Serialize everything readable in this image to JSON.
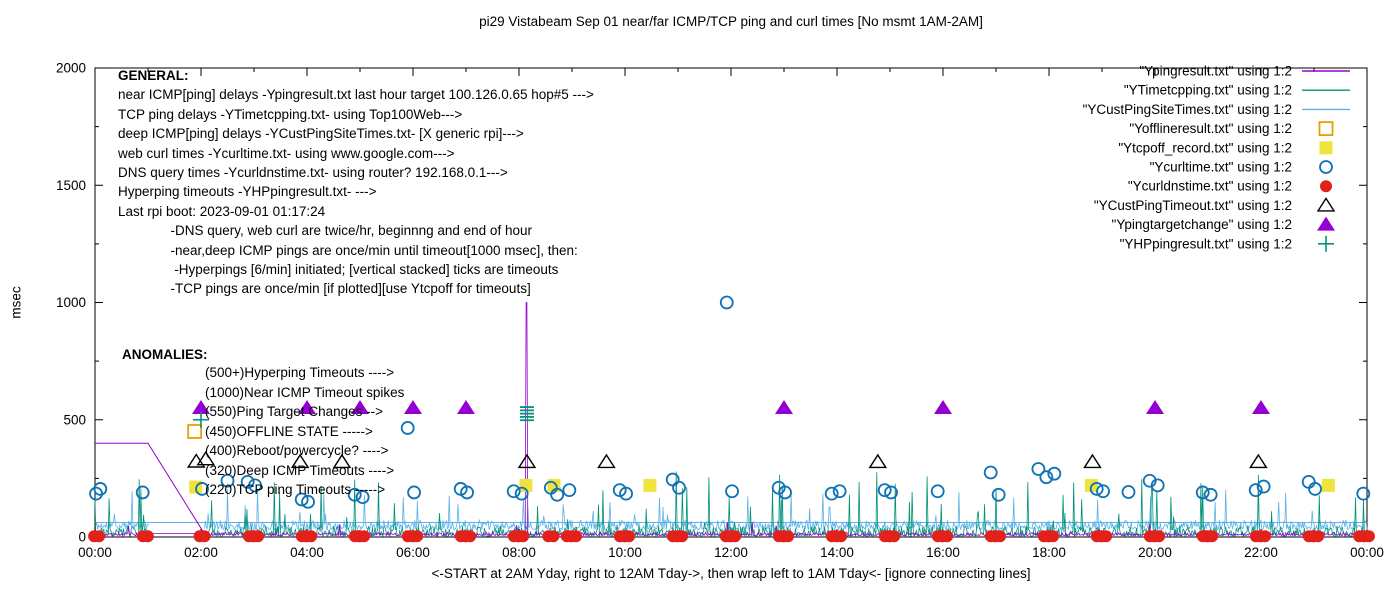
{
  "title": "pi29 Vistabeam Sep 01  near/far ICMP/TCP ping and curl times [No msmt 1AM-2AM]",
  "general_notes": [
    "GENERAL:",
    "near ICMP[ping] delays -Ypingresult.txt last hour target 100.126.0.65 hop#5 --->",
    "TCP ping delays -YTimetcpping.txt- using Top100Web--->",
    "deep ICMP[ping] delays -YCustPingSiteTimes.txt- [X generic rpi]--->",
    "web curl times -Ycurltime.txt- using www.google.com--->",
    "DNS query times -Ycurldnstime.txt- using router? 192.168.0.1--->",
    "Hyperping timeouts -YHPpingresult.txt- --->",
    "Last rpi boot: 2023-09-01 01:17:24",
    "              -DNS query, web curl are twice/hr, beginnng and end of hour",
    "              -near,deep ICMP pings are once/min until timeout[1000 msec], then:",
    "               -Hyperpings [6/min] initiated; [vertical stacked] ticks are timeouts",
    "              -TCP pings are once/min [if plotted][use Ytcpoff for timeouts]"
  ],
  "anomalies_header": "ANOMALIES:",
  "anomalies_notes": [
    "(500+)Hyperping Timeouts ---->",
    "(1000)Near ICMP Timeout spikes",
    "(550)Ping Target Changes -->",
    "(450)OFFLINE STATE ----->",
    "(400)Reboot/powercycle? ---->",
    "(320)Deep ICMP Timeouts ---->",
    "(220)TCP ping Timeouts ----->"
  ],
  "legend": [
    {
      "label": "\"Ypingresult.txt\" using 1:2",
      "sample": "line",
      "color": "near"
    },
    {
      "label": "\"YTimetcpping.txt\" using 1:2",
      "sample": "line",
      "color": "tcp"
    },
    {
      "label": "\"YCustPingSiteTimes.txt\" using 1:2",
      "sample": "line",
      "color": "deep"
    },
    {
      "label": "\"Yofflineresult.txt\" using 1:2",
      "sample": "square-open",
      "color": "offline"
    },
    {
      "label": "\"Ytcpoff_record.txt\" using 1:2",
      "sample": "square-fill",
      "color": "tcpoff"
    },
    {
      "label": "\"Ycurltime.txt\" using 1:2",
      "sample": "circle-open",
      "color": "curl"
    },
    {
      "label": "\"Ycurldnstime.txt\" using 1:2",
      "sample": "circle-fill",
      "color": "dns"
    },
    {
      "label": "\"YCustPingTimeout.txt\" using 1:2",
      "sample": "triangle-open",
      "color": "timeout"
    },
    {
      "label": "\"Ypingtargetchange\" using 1:2",
      "sample": "triangle-fill",
      "color": "target"
    },
    {
      "label": "\"YHPpingresult.txt\" using 1:2",
      "sample": "plus",
      "color": "hyper"
    }
  ],
  "colors": {
    "near": "#9400D3",
    "tcp": "#009377",
    "deep": "#5CB1E8",
    "offline": "#E8A000",
    "tcpoff": "#EFE33D",
    "curl": "#0F72B4",
    "dns": "#E3211B",
    "timeout": "#000000",
    "target": "#9400D3",
    "hyper": "#009377",
    "border": "#000000",
    "text": "#000000"
  },
  "chart_data": {
    "type": "line",
    "title": "pi29 Vistabeam Sep 01  near/far ICMP/TCP ping and curl times [No msmt 1AM-2AM]",
    "xlabel": "<-START at 2AM Yday, right to 12AM Tday->, then wrap left to 1AM Tday<- [ignore connecting lines]",
    "ylabel": "msec",
    "xlim_hours": [
      0,
      24
    ],
    "ylim": [
      0,
      2000
    ],
    "x_major_ticks": [
      {
        "h": 0,
        "label": "00:00"
      },
      {
        "h": 2,
        "label": "02:00"
      },
      {
        "h": 4,
        "label": "04:00"
      },
      {
        "h": 6,
        "label": "06:00"
      },
      {
        "h": 8,
        "label": "08:00"
      },
      {
        "h": 10,
        "label": "10:00"
      },
      {
        "h": 12,
        "label": "12:00"
      },
      {
        "h": 14,
        "label": "14:00"
      },
      {
        "h": 16,
        "label": "16:00"
      },
      {
        "h": 18,
        "label": "18:00"
      },
      {
        "h": 20,
        "label": "20:00"
      },
      {
        "h": 22,
        "label": "22:00"
      },
      {
        "h": 24,
        "label": "00:00"
      }
    ],
    "x_minor_step_hours": 1,
    "y_major_ticks": [
      0,
      500,
      1000,
      1500,
      2000
    ],
    "y_minor_ticks": [
      250,
      750,
      1250,
      1750
    ],
    "grid": false,
    "legend_position": "top-right",
    "no_measurement_gap_hours": [
      1.02,
      2.05
    ],
    "series": [
      {
        "name": "YCustPingSiteTimes.txt",
        "color": "deep",
        "kind": "noise-comb",
        "seed": 11,
        "base": [
          32,
          72
        ],
        "spike_p": 0.03,
        "spike": [
          90,
          210
        ],
        "gap_break": true,
        "const_line_v": 62,
        "desc": "deep ICMP ping delays, once/min"
      },
      {
        "name": "YTimetcpping.txt",
        "color": "tcp",
        "kind": "noise-comb",
        "seed": 3,
        "base": [
          2,
          45
        ],
        "spike_p": 0.05,
        "spike": [
          60,
          280
        ],
        "gap_break": true,
        "desc": "TCP ping delays, once/min"
      },
      {
        "name": "Ypingresult.txt",
        "color": "near",
        "kind": "noise-comb",
        "seed": 7,
        "base": [
          6,
          20
        ],
        "spike_p": 0.006,
        "spike": [
          30,
          65
        ],
        "gap_connect_v": 15,
        "big_spikes": [
          {
            "t": 8.14,
            "halfwidth": 0.02,
            "v": 1000
          }
        ],
        "wrap_segment": [
          [
            0,
            400
          ],
          [
            1.0,
            400
          ],
          [
            2.07,
            12
          ]
        ],
        "desc": "near ICMP ping delays; flat 400 then wrap diagonal 1AM-2AM; timeout spike 1000 at ~08:09"
      }
    ],
    "markers": {
      "ping_target_change": {
        "shape": "triangle-fill",
        "color": "target",
        "v": 550,
        "times": [
          2.0,
          4.0,
          5.0,
          6.0,
          7.0,
          13.0,
          16.0,
          20.0,
          22.0
        ]
      },
      "deep_icmp_timeout": {
        "shape": "triangle-open",
        "color": "timeout",
        "points": [
          [
            1.91,
            322
          ],
          [
            2.09,
            332
          ],
          [
            3.87,
            320
          ],
          [
            4.66,
            320
          ],
          [
            8.15,
            320
          ],
          [
            9.65,
            320
          ],
          [
            14.77,
            320
          ],
          [
            18.82,
            320
          ],
          [
            21.95,
            320
          ]
        ]
      },
      "offline_state": {
        "shape": "square-open",
        "color": "offline",
        "points": [
          [
            1.88,
            450
          ]
        ]
      },
      "tcp_ping_timeout": {
        "shape": "square-fill",
        "color": "tcpoff",
        "points": [
          [
            1.9,
            213
          ],
          [
            8.13,
            220
          ],
          [
            8.66,
            220
          ],
          [
            10.47,
            220
          ],
          [
            18.8,
            220
          ],
          [
            23.27,
            220
          ]
        ]
      },
      "web_curl": {
        "shape": "circle-open",
        "color": "curl",
        "points": [
          [
            0.02,
            185
          ],
          [
            0.1,
            205
          ],
          [
            0.9,
            190
          ],
          [
            2.02,
            205
          ],
          [
            2.5,
            240
          ],
          [
            2.88,
            235
          ],
          [
            3.02,
            220
          ],
          [
            3.9,
            160
          ],
          [
            4.02,
            150
          ],
          [
            4.9,
            180
          ],
          [
            5.05,
            170
          ],
          [
            5.9,
            465
          ],
          [
            6.02,
            190
          ],
          [
            6.9,
            205
          ],
          [
            7.02,
            190
          ],
          [
            7.9,
            195
          ],
          [
            8.05,
            185
          ],
          [
            8.6,
            210
          ],
          [
            8.72,
            180
          ],
          [
            8.95,
            200
          ],
          [
            9.9,
            200
          ],
          [
            10.02,
            185
          ],
          [
            10.9,
            245
          ],
          [
            11.02,
            210
          ],
          [
            11.92,
            1000
          ],
          [
            12.02,
            195
          ],
          [
            12.9,
            210
          ],
          [
            13.02,
            190
          ],
          [
            13.9,
            185
          ],
          [
            14.05,
            195
          ],
          [
            14.9,
            200
          ],
          [
            15.02,
            190
          ],
          [
            15.9,
            195
          ],
          [
            16.9,
            275
          ],
          [
            17.05,
            180
          ],
          [
            17.8,
            290
          ],
          [
            17.95,
            255
          ],
          [
            18.1,
            270
          ],
          [
            18.9,
            205
          ],
          [
            19.02,
            195
          ],
          [
            19.5,
            192
          ],
          [
            19.9,
            240
          ],
          [
            20.05,
            220
          ],
          [
            20.9,
            190
          ],
          [
            21.05,
            180
          ],
          [
            21.9,
            200
          ],
          [
            22.05,
            215
          ],
          [
            22.9,
            235
          ],
          [
            23.02,
            205
          ],
          [
            23.93,
            185
          ]
        ]
      },
      "dns_query": {
        "shape": "circle-fill",
        "color": "dns",
        "v": 3,
        "times": [
          0.03,
          0.95,
          2.02,
          2.95,
          3.03,
          3.95,
          4.03,
          4.95,
          5.03,
          5.95,
          6.03,
          6.95,
          7.03,
          7.95,
          8.03,
          8.6,
          8.95,
          9.03,
          9.95,
          10.03,
          10.95,
          11.03,
          11.95,
          12.03,
          12.95,
          13.03,
          13.95,
          14.03,
          14.95,
          15.03,
          15.95,
          16.03,
          16.95,
          17.03,
          17.95,
          18.03,
          18.95,
          19.03,
          19.95,
          20.03,
          20.95,
          21.03,
          21.95,
          22.03,
          22.95,
          23.03,
          23.9,
          23.99
        ]
      },
      "hyperping_plus": {
        "shape": "plus",
        "color": "hyper",
        "points": [
          [
            2.0,
            500
          ]
        ]
      },
      "hyperping_stack": {
        "shape": "hstack",
        "color": "hyper",
        "t": 8.15,
        "values": [
          498,
          512,
          526,
          540,
          554
        ]
      }
    }
  }
}
